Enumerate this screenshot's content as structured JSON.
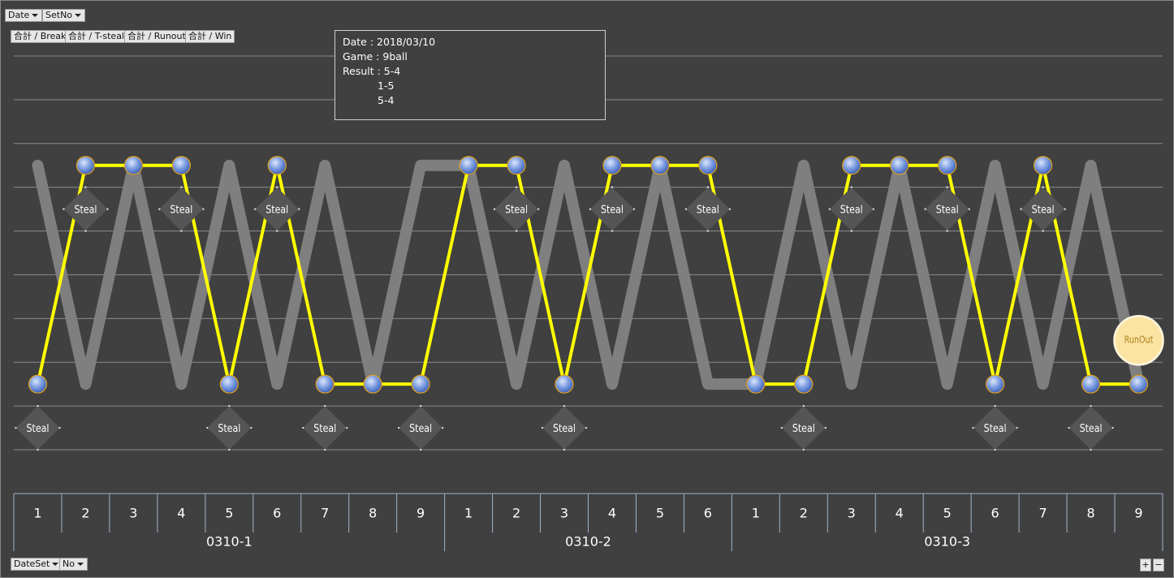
{
  "field_buttons": {
    "filters": [
      "Date",
      "SetNo"
    ],
    "values": [
      "合計 / Break",
      "合計 / T-steal",
      "合計 / Runout",
      "合計 / Win"
    ],
    "axis": [
      "DateSet",
      "No"
    ],
    "zoom": [
      "+",
      "−"
    ]
  },
  "tooltip": {
    "lines": [
      "Date : 2018/03/10",
      "Game : 9ball",
      "Result : 5-4",
      "1-5",
      "5-4"
    ]
  },
  "chart_data": {
    "type": "line",
    "groups": [
      {
        "name": "0310-1",
        "categories": [
          "1",
          "2",
          "3",
          "4",
          "5",
          "6",
          "7",
          "8",
          "9"
        ]
      },
      {
        "name": "0310-2",
        "categories": [
          "1",
          "2",
          "3",
          "4",
          "5",
          "6"
        ]
      },
      {
        "name": "0310-3",
        "categories": [
          "1",
          "2",
          "3",
          "4",
          "5",
          "6",
          "7",
          "8",
          "9"
        ]
      }
    ],
    "ylim": [
      0,
      9
    ],
    "gridlines": [
      0,
      1,
      2,
      3,
      4,
      5,
      6,
      7,
      8,
      9
    ],
    "grid": true,
    "series": [
      {
        "color": "#7f7f7f",
        "line": true,
        "marker": "none",
        "values": [
          6.5,
          1.5,
          6.5,
          1.5,
          6.5,
          1.5,
          6.5,
          1.5,
          6.5,
          6.5,
          1.5,
          6.5,
          1.5,
          6.5,
          1.5,
          1.5,
          6.5,
          1.5,
          6.5,
          1.5,
          6.5,
          1.5,
          6.5,
          1.5
        ]
      },
      {
        "color": "#ffff00",
        "line": true,
        "marker": "circle",
        "values": [
          1.5,
          6.5,
          6.5,
          6.5,
          1.5,
          6.5,
          1.5,
          1.5,
          1.5,
          6.5,
          6.5,
          1.5,
          6.5,
          6.5,
          6.5,
          1.5,
          1.5,
          6.5,
          6.5,
          6.5,
          1.5,
          6.5,
          1.5,
          1.5
        ]
      },
      {
        "color": "#555555",
        "line": false,
        "marker": "diamond",
        "values": [
          0.5,
          5.5,
          null,
          5.5,
          0.5,
          5.5,
          0.5,
          null,
          0.5,
          null,
          5.5,
          0.5,
          5.5,
          null,
          5.5,
          null,
          0.5,
          5.5,
          null,
          5.5,
          0.5,
          5.5,
          0.5,
          null
        ],
        "value_labels": [
          "Steal",
          "Steal",
          null,
          "Steal",
          "Steal",
          "Steal",
          "Steal",
          null,
          "Steal",
          null,
          "Steal",
          "Steal",
          "Steal",
          null,
          "Steal",
          null,
          "Steal",
          "Steal",
          null,
          "Steal",
          "Steal",
          "Steal",
          "Steal",
          null
        ]
      },
      {
        "color": "#fbe3a1",
        "line": false,
        "marker": "bubble",
        "values": [
          null,
          null,
          null,
          null,
          null,
          null,
          null,
          null,
          null,
          null,
          null,
          null,
          null,
          null,
          null,
          null,
          null,
          null,
          null,
          null,
          null,
          null,
          null,
          2.5
        ],
        "value_labels": [
          null,
          null,
          null,
          null,
          null,
          null,
          null,
          null,
          null,
          null,
          null,
          null,
          null,
          null,
          null,
          null,
          null,
          null,
          null,
          null,
          null,
          null,
          null,
          "RunOut"
        ]
      }
    ]
  }
}
